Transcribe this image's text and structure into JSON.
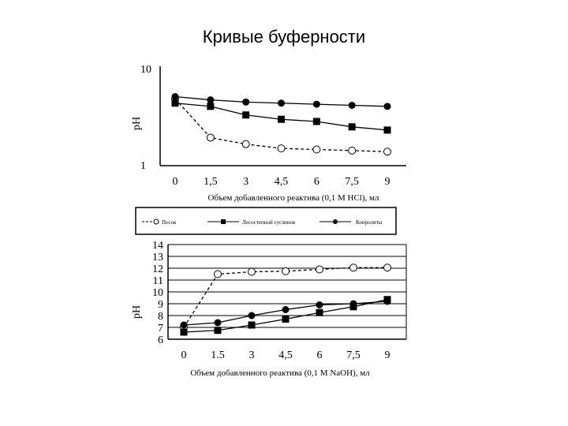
{
  "slide": {
    "title": "Кривые буферности"
  },
  "chart_data": [
    {
      "type": "line",
      "ylabel": "pH",
      "xlabel": "Объем добавленного реактива (0,1 M HCl), мл",
      "x": [
        0,
        1.5,
        3,
        4.5,
        6,
        7.5,
        9
      ],
      "x_tick_labels": [
        "0",
        "1,5",
        "3",
        "4,5",
        "6",
        "7,5",
        "9"
      ],
      "y_tick_labels": [
        "10",
        "1"
      ],
      "ylim": [
        1,
        10
      ],
      "grid": false,
      "series": [
        {
          "name": "Песок",
          "marker": "open-circle",
          "dash": true,
          "values": [
            7.2,
            3.6,
            3.0,
            2.6,
            2.5,
            2.4,
            2.3
          ]
        },
        {
          "name": "Лесостепной суглинок",
          "marker": "square",
          "dash": false,
          "values": [
            6.8,
            6.5,
            5.7,
            5.3,
            5.1,
            4.6,
            4.3
          ]
        },
        {
          "name": "Копролиты",
          "marker": "circle",
          "dash": false,
          "values": [
            7.4,
            7.1,
            6.9,
            6.8,
            6.7,
            6.6,
            6.5
          ]
        }
      ]
    },
    {
      "type": "line",
      "ylabel": "pH",
      "xlabel": "Объем добавленного реактива (0,1 M NaOH), мл",
      "x": [
        0,
        1.5,
        3,
        4.5,
        6,
        7.5,
        9
      ],
      "x_tick_labels": [
        "0",
        "1.5",
        "3",
        "4,5",
        "6",
        "7,5",
        "9"
      ],
      "y_ticks": [
        6,
        7,
        8,
        9,
        10,
        11,
        12,
        13,
        14
      ],
      "ylim": [
        6,
        14
      ],
      "grid": true,
      "series": [
        {
          "name": "Песок",
          "marker": "open-circle",
          "dash": true,
          "values": [
            7.0,
            11.5,
            11.7,
            11.75,
            11.9,
            12.05,
            12.05
          ]
        },
        {
          "name": "Лесостепной суглинок",
          "marker": "square",
          "dash": false,
          "values": [
            6.6,
            6.75,
            7.2,
            7.7,
            8.25,
            8.75,
            9.35
          ]
        },
        {
          "name": "Копролиты",
          "marker": "circle",
          "dash": false,
          "values": [
            7.2,
            7.4,
            8.0,
            8.5,
            8.9,
            9.0,
            9.2
          ]
        }
      ]
    }
  ]
}
